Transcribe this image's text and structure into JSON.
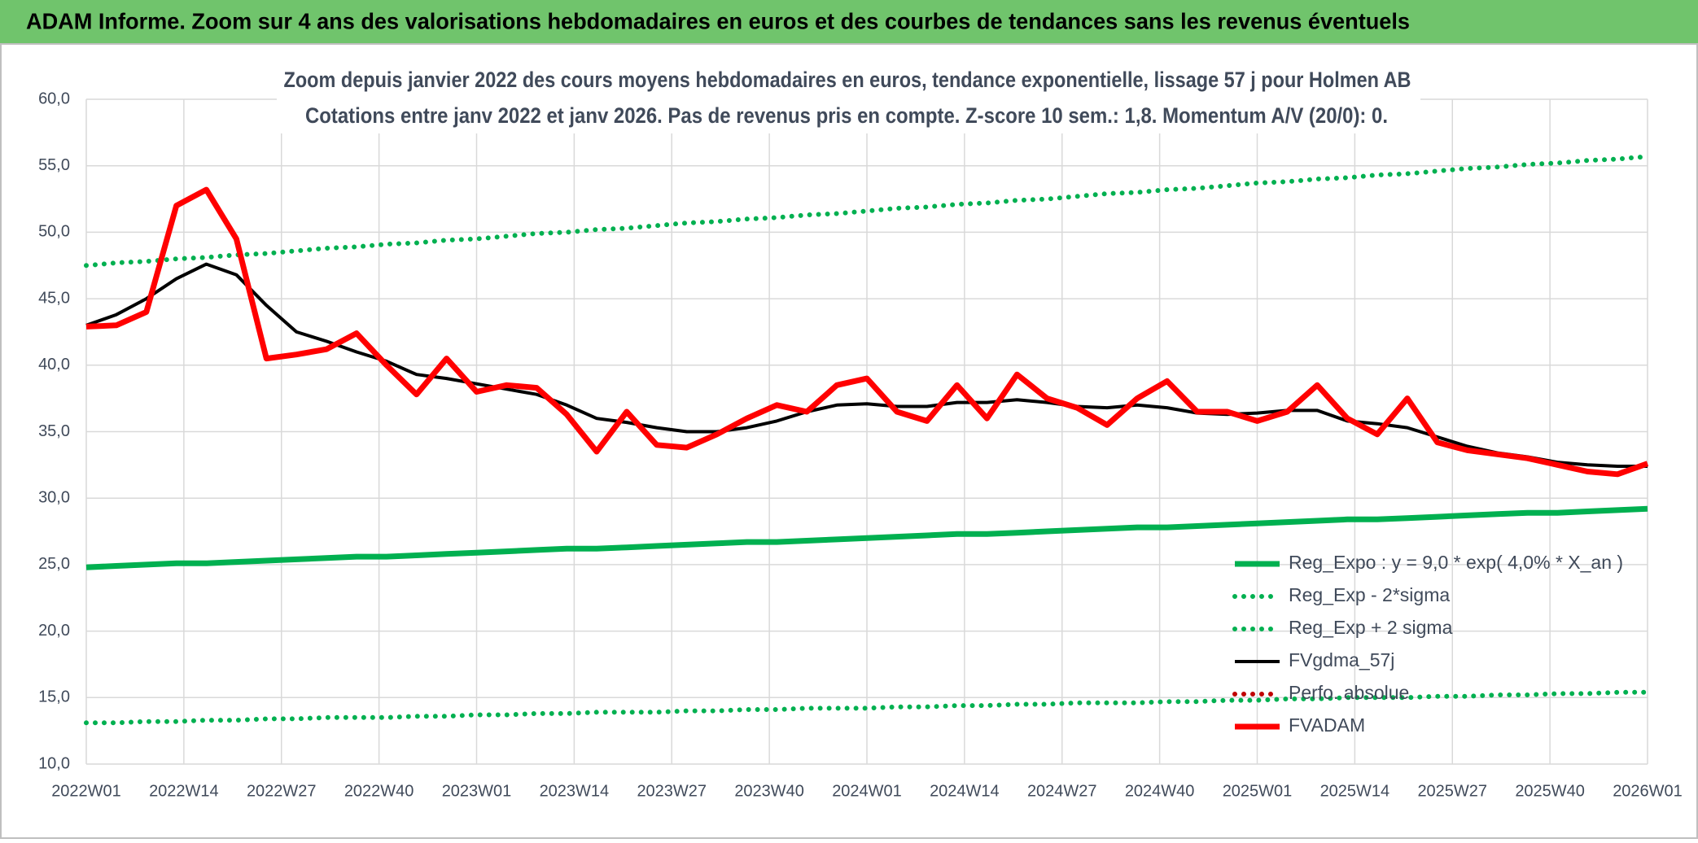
{
  "header": {
    "title": "ADAM Informe. Zoom sur 4 ans des valorisations hebdomadaires en euros et des courbes de tendances sans les revenus éventuels"
  },
  "chart_data": {
    "type": "line",
    "title": "Zoom depuis janvier 2022 des cours moyens hebdomadaires en euros, tendance exponentielle, lissage 57 j pour Holmen AB",
    "subtitle": "Cotations entre janv 2022 et janv 2026. Pas de revenus pris en compte. Z-score 10 sem.: 1,8. Momentum A/V (20/0): 0.",
    "x": [
      0,
      4,
      8,
      12,
      16,
      20,
      24,
      28,
      32,
      36,
      40,
      44,
      48,
      52,
      56,
      60,
      64,
      68,
      72,
      76,
      80,
      84,
      88,
      92,
      96,
      100,
      104,
      108,
      112,
      116,
      120,
      124,
      128,
      132,
      136,
      140,
      144,
      148,
      152,
      156,
      160,
      164,
      168,
      172,
      176,
      180,
      184,
      188,
      192,
      196,
      200,
      204,
      208
    ],
    "xlim": [
      0,
      208
    ],
    "xticks": [
      {
        "value": 0,
        "label": "2022W01"
      },
      {
        "value": 13,
        "label": "2022W14"
      },
      {
        "value": 26,
        "label": "2022W27"
      },
      {
        "value": 39,
        "label": "2022W40"
      },
      {
        "value": 52,
        "label": "2023W01"
      },
      {
        "value": 65,
        "label": "2023W14"
      },
      {
        "value": 78,
        "label": "2023W27"
      },
      {
        "value": 91,
        "label": "2023W40"
      },
      {
        "value": 104,
        "label": "2024W01"
      },
      {
        "value": 117,
        "label": "2024W14"
      },
      {
        "value": 130,
        "label": "2024W27"
      },
      {
        "value": 143,
        "label": "2024W40"
      },
      {
        "value": 156,
        "label": "2025W01"
      },
      {
        "value": 169,
        "label": "2025W14"
      },
      {
        "value": 182,
        "label": "2025W27"
      },
      {
        "value": 195,
        "label": "2025W40"
      },
      {
        "value": 208,
        "label": "2026W01"
      }
    ],
    "ylim": [
      10,
      60
    ],
    "yticks": [
      {
        "value": 10,
        "label": "10,0"
      },
      {
        "value": 15,
        "label": "15,0"
      },
      {
        "value": 20,
        "label": "20,0"
      },
      {
        "value": 25,
        "label": "25,0"
      },
      {
        "value": 30,
        "label": "30,0"
      },
      {
        "value": 35,
        "label": "35,0"
      },
      {
        "value": 40,
        "label": "40,0"
      },
      {
        "value": 45,
        "label": "45,0"
      },
      {
        "value": 50,
        "label": "50,0"
      },
      {
        "value": 55,
        "label": "55,0"
      },
      {
        "value": 60,
        "label": "60,0"
      }
    ],
    "grid": true,
    "legend": "lower right",
    "series": [
      {
        "name": "Reg_Expo : y = 9,0 * exp( 4,0% *  X_an )",
        "color": "#00b050",
        "style": "solid",
        "values": [
          24.8,
          24.9,
          25.0,
          25.1,
          25.1,
          25.2,
          25.3,
          25.4,
          25.5,
          25.6,
          25.6,
          25.7,
          25.8,
          25.9,
          26.0,
          26.1,
          26.2,
          26.2,
          26.3,
          26.4,
          26.5,
          26.6,
          26.7,
          26.7,
          26.8,
          26.9,
          27.0,
          27.1,
          27.2,
          27.3,
          27.3,
          27.4,
          27.5,
          27.6,
          27.7,
          27.8,
          27.8,
          27.9,
          28.0,
          28.1,
          28.2,
          28.3,
          28.4,
          28.4,
          28.5,
          28.6,
          28.7,
          28.8,
          28.9,
          28.9,
          29.0,
          29.1,
          29.2
        ]
      },
      {
        "name": "Reg_Exp - 2*sigma",
        "color": "#00b050",
        "style": "dotted",
        "values": [
          13.1,
          13.1,
          13.2,
          13.2,
          13.3,
          13.3,
          13.4,
          13.4,
          13.5,
          13.5,
          13.5,
          13.6,
          13.6,
          13.7,
          13.7,
          13.8,
          13.8,
          13.9,
          13.9,
          13.9,
          14.0,
          14.0,
          14.1,
          14.1,
          14.2,
          14.2,
          14.2,
          14.3,
          14.3,
          14.4,
          14.4,
          14.5,
          14.5,
          14.6,
          14.6,
          14.6,
          14.7,
          14.7,
          14.8,
          14.8,
          14.9,
          14.9,
          15.0,
          15.0,
          15.0,
          15.1,
          15.1,
          15.2,
          15.2,
          15.3,
          15.3,
          15.4,
          15.4
        ]
      },
      {
        "name": "Reg_Exp + 2 sigma",
        "color": "#00b050",
        "style": "dotted",
        "values": [
          47.5,
          47.7,
          47.8,
          48.0,
          48.1,
          48.3,
          48.4,
          48.6,
          48.8,
          48.9,
          49.1,
          49.2,
          49.4,
          49.5,
          49.7,
          49.9,
          50.0,
          50.2,
          50.3,
          50.5,
          50.7,
          50.8,
          51.0,
          51.1,
          51.3,
          51.4,
          51.6,
          51.8,
          51.9,
          52.1,
          52.2,
          52.4,
          52.5,
          52.7,
          52.9,
          53.0,
          53.2,
          53.3,
          53.5,
          53.7,
          53.8,
          54.0,
          54.1,
          54.3,
          54.4,
          54.6,
          54.8,
          54.9,
          55.1,
          55.2,
          55.4,
          55.5,
          55.7
        ]
      },
      {
        "name": "FVgdma_57j",
        "color": "#000000",
        "style": "solid",
        "values": [
          43,
          43.8,
          45,
          46.5,
          47.6,
          46.8,
          44.5,
          42.5,
          41.8,
          41,
          40.3,
          39.3,
          39,
          38.6,
          38.2,
          37.8,
          37,
          36,
          35.7,
          35.3,
          35,
          35,
          35.3,
          35.8,
          36.5,
          37,
          37.1,
          36.9,
          36.9,
          37.2,
          37.2,
          37.4,
          37.2,
          36.9,
          36.8,
          37,
          36.8,
          36.4,
          36.3,
          36.4,
          36.6,
          36.6,
          35.8,
          35.6,
          35.3,
          34.6,
          33.9,
          33.4,
          33.1,
          32.7,
          32.5,
          32.4,
          32.4
        ]
      },
      {
        "name": "Perfo. absolue",
        "color": "#c00000",
        "style": "dotted",
        "values": [
          null,
          null,
          null,
          null,
          null,
          null,
          null,
          null,
          null,
          null,
          null,
          null,
          null,
          null,
          null,
          null,
          null,
          null,
          null,
          null,
          null,
          null,
          null,
          null,
          null,
          null,
          null,
          null,
          null,
          null,
          null,
          null,
          null,
          null,
          null,
          null,
          null,
          null,
          null,
          null,
          null,
          null,
          null,
          null,
          null,
          null,
          null,
          null,
          null,
          null,
          null,
          null,
          null
        ]
      },
      {
        "name": "FVADAM",
        "color": "#ff0000",
        "style": "solid",
        "values": [
          42.9,
          43.0,
          44.0,
          52.0,
          53.2,
          49.5,
          40.5,
          40.8,
          41.2,
          42.4,
          40.0,
          37.8,
          40.5,
          38.0,
          38.5,
          38.3,
          36.3,
          33.5,
          36.5,
          34.0,
          33.8,
          34.8,
          36.0,
          37.0,
          36.5,
          38.5,
          39.0,
          36.5,
          35.8,
          38.5,
          36.0,
          39.3,
          37.5,
          36.8,
          35.5,
          37.5,
          38.8,
          36.5,
          36.5,
          35.8,
          36.5,
          38.5,
          36.0,
          34.8,
          37.5,
          34.2,
          33.6,
          33.3,
          33.0,
          32.5,
          32.0,
          31.8,
          32.6
        ]
      }
    ]
  }
}
